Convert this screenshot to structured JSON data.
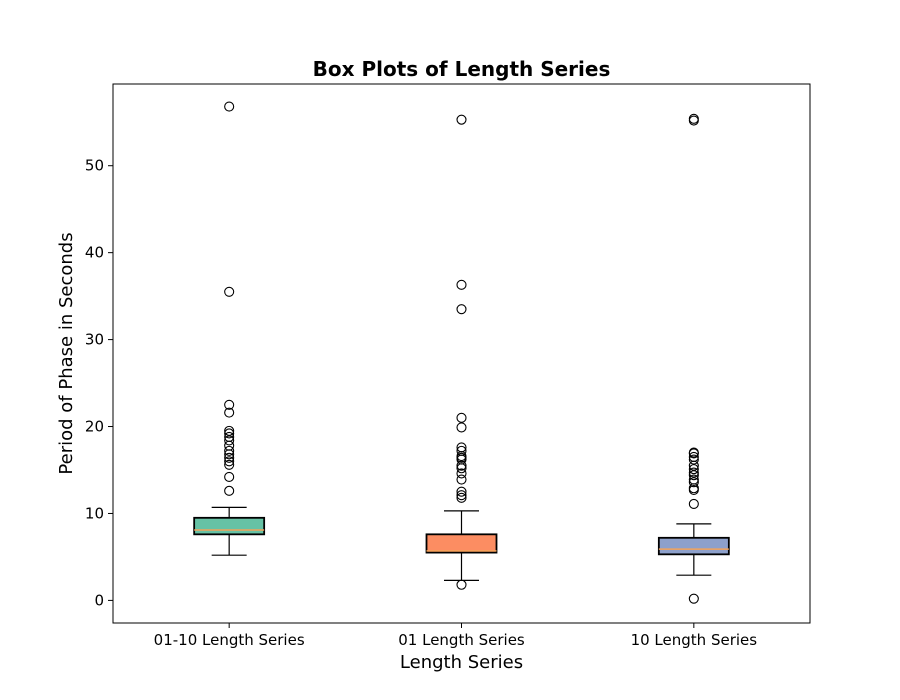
{
  "chart_data": {
    "type": "box",
    "title": "Box Plots of Length Series",
    "xlabel": "Length Series",
    "ylabel": "Period of Phase in Seconds",
    "ylim": [
      -2.6,
      59.4
    ],
    "yticks": [
      0,
      10,
      20,
      30,
      40,
      50
    ],
    "grid": false,
    "boxes": [
      {
        "name": "01-10 Length Series",
        "color": "#66c2a5",
        "q1": 7.6,
        "median": 8.1,
        "q3": 9.5,
        "whisker_low": 5.2,
        "whisker_high": 10.7,
        "outliers": [
          12.6,
          14.2,
          15.6,
          16.0,
          16.4,
          16.8,
          17.2,
          17.8,
          18.4,
          18.8,
          19.2,
          19.5,
          21.6,
          22.5,
          35.5,
          56.8
        ]
      },
      {
        "name": "01 Length Series",
        "color": "#fc8d62",
        "q1": 5.5,
        "median": 5.7,
        "q3": 7.6,
        "whisker_low": 2.3,
        "whisker_high": 10.3,
        "outliers": [
          1.8,
          11.8,
          12.1,
          12.5,
          13.9,
          14.6,
          15.2,
          15.5,
          16.2,
          16.4,
          16.6,
          17.2,
          17.6,
          19.9,
          21.0,
          33.5,
          36.3,
          55.3
        ]
      },
      {
        "name": "10 Length Series",
        "color": "#8da0cb",
        "q1": 5.3,
        "median": 5.9,
        "q3": 7.2,
        "whisker_low": 2.9,
        "whisker_high": 8.8,
        "outliers": [
          0.2,
          11.1,
          12.7,
          12.9,
          13.6,
          13.9,
          14.4,
          14.7,
          15.1,
          15.5,
          16.2,
          16.5,
          16.9,
          17.0,
          55.2,
          55.4
        ]
      }
    ],
    "median_color": "#f4a259"
  }
}
